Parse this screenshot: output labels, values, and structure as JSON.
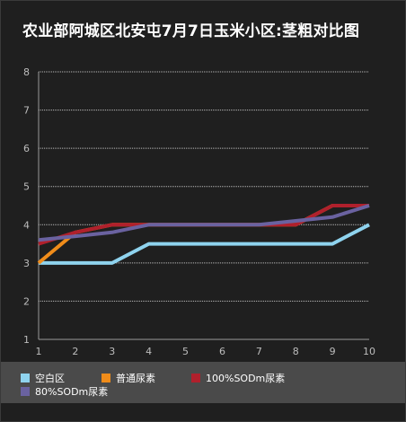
{
  "chart_data": {
    "type": "line",
    "title": "农业部阿城区北安屯7月7日玉米小区:茎粗对比图",
    "xlabel": "",
    "ylabel": "",
    "x": [
      1,
      2,
      3,
      4,
      5,
      6,
      7,
      8,
      9,
      10
    ],
    "ylim": [
      1,
      8
    ],
    "yticks": [
      1,
      2,
      3,
      4,
      5,
      6,
      7,
      8
    ],
    "grid": true,
    "legend_position": "bottom",
    "series": [
      {
        "name": "空白区",
        "color": "#8fd3ee",
        "values": [
          3,
          3,
          3,
          3.5,
          3.5,
          3.5,
          3.5,
          3.5,
          3.5,
          4
        ]
      },
      {
        "name": "普通尿素",
        "color": "#f08c1a",
        "values": [
          3,
          3.8,
          4,
          4,
          4,
          4,
          4,
          4,
          4.5,
          4.5
        ]
      },
      {
        "name": "100%SODm尿素",
        "color": "#b0202c",
        "values": [
          3.5,
          3.8,
          4,
          4,
          4,
          4,
          4,
          4,
          4.5,
          4.5
        ]
      },
      {
        "name": "80%SODm尿素",
        "color": "#6a62a0",
        "values": [
          3.6,
          3.7,
          3.8,
          4,
          4,
          4,
          4,
          4.1,
          4.2,
          4.5
        ]
      }
    ]
  }
}
